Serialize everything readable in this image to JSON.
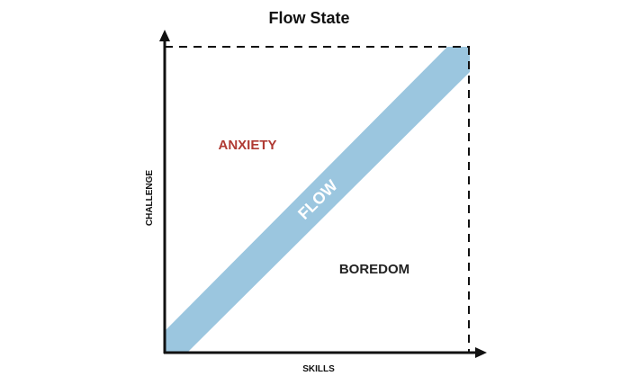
{
  "title": "Flow State",
  "axes": {
    "x_label": "SKILLS",
    "y_label": "CHALLENGE"
  },
  "regions": {
    "anxiety": "ANXIETY",
    "boredom": "BOREDOM",
    "flow": "FLOW"
  },
  "colors": {
    "anxiety": "#b03a33",
    "boredom": "#222222",
    "flow_band": "#9bc6df",
    "axis": "#111111"
  }
}
